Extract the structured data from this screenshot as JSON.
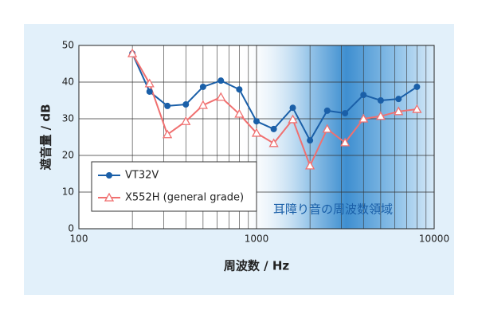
{
  "chart_data": {
    "type": "line",
    "x_label": "周波数 / Hz",
    "y_label": "遮音量 / dB",
    "annotation": "耳障り音の周波数領域",
    "x": [
      200,
      250,
      315,
      400,
      500,
      630,
      800,
      1000,
      1250,
      1600,
      2000,
      2500,
      3150,
      4000,
      5000,
      6300,
      8000
    ],
    "series": [
      {
        "name": "VT32V",
        "color": "#1a5fa8",
        "marker": "circle",
        "values": [
          47.8,
          37.4,
          33.5,
          33.9,
          38.7,
          40.4,
          38,
          29.3,
          27.2,
          33,
          24.1,
          32.2,
          31.5,
          36.5,
          35,
          35.4,
          38.7
        ]
      },
      {
        "name": "X552H (general grade)",
        "color": "#f07070",
        "marker": "triangle",
        "values": [
          47.8,
          39.6,
          25.7,
          29.3,
          33.7,
          35.9,
          31.3,
          26.1,
          23.3,
          29.8,
          17.2,
          27.2,
          23.5,
          30,
          30.7,
          32,
          32.6
        ]
      }
    ],
    "xlog": true,
    "xlim": [
      100,
      10000
    ],
    "xticks": [
      100,
      1000,
      10000
    ],
    "ylim": [
      0,
      50
    ],
    "yticks": [
      0,
      10,
      20,
      30,
      40,
      50
    ],
    "grid": true,
    "legend": "lower left"
  }
}
